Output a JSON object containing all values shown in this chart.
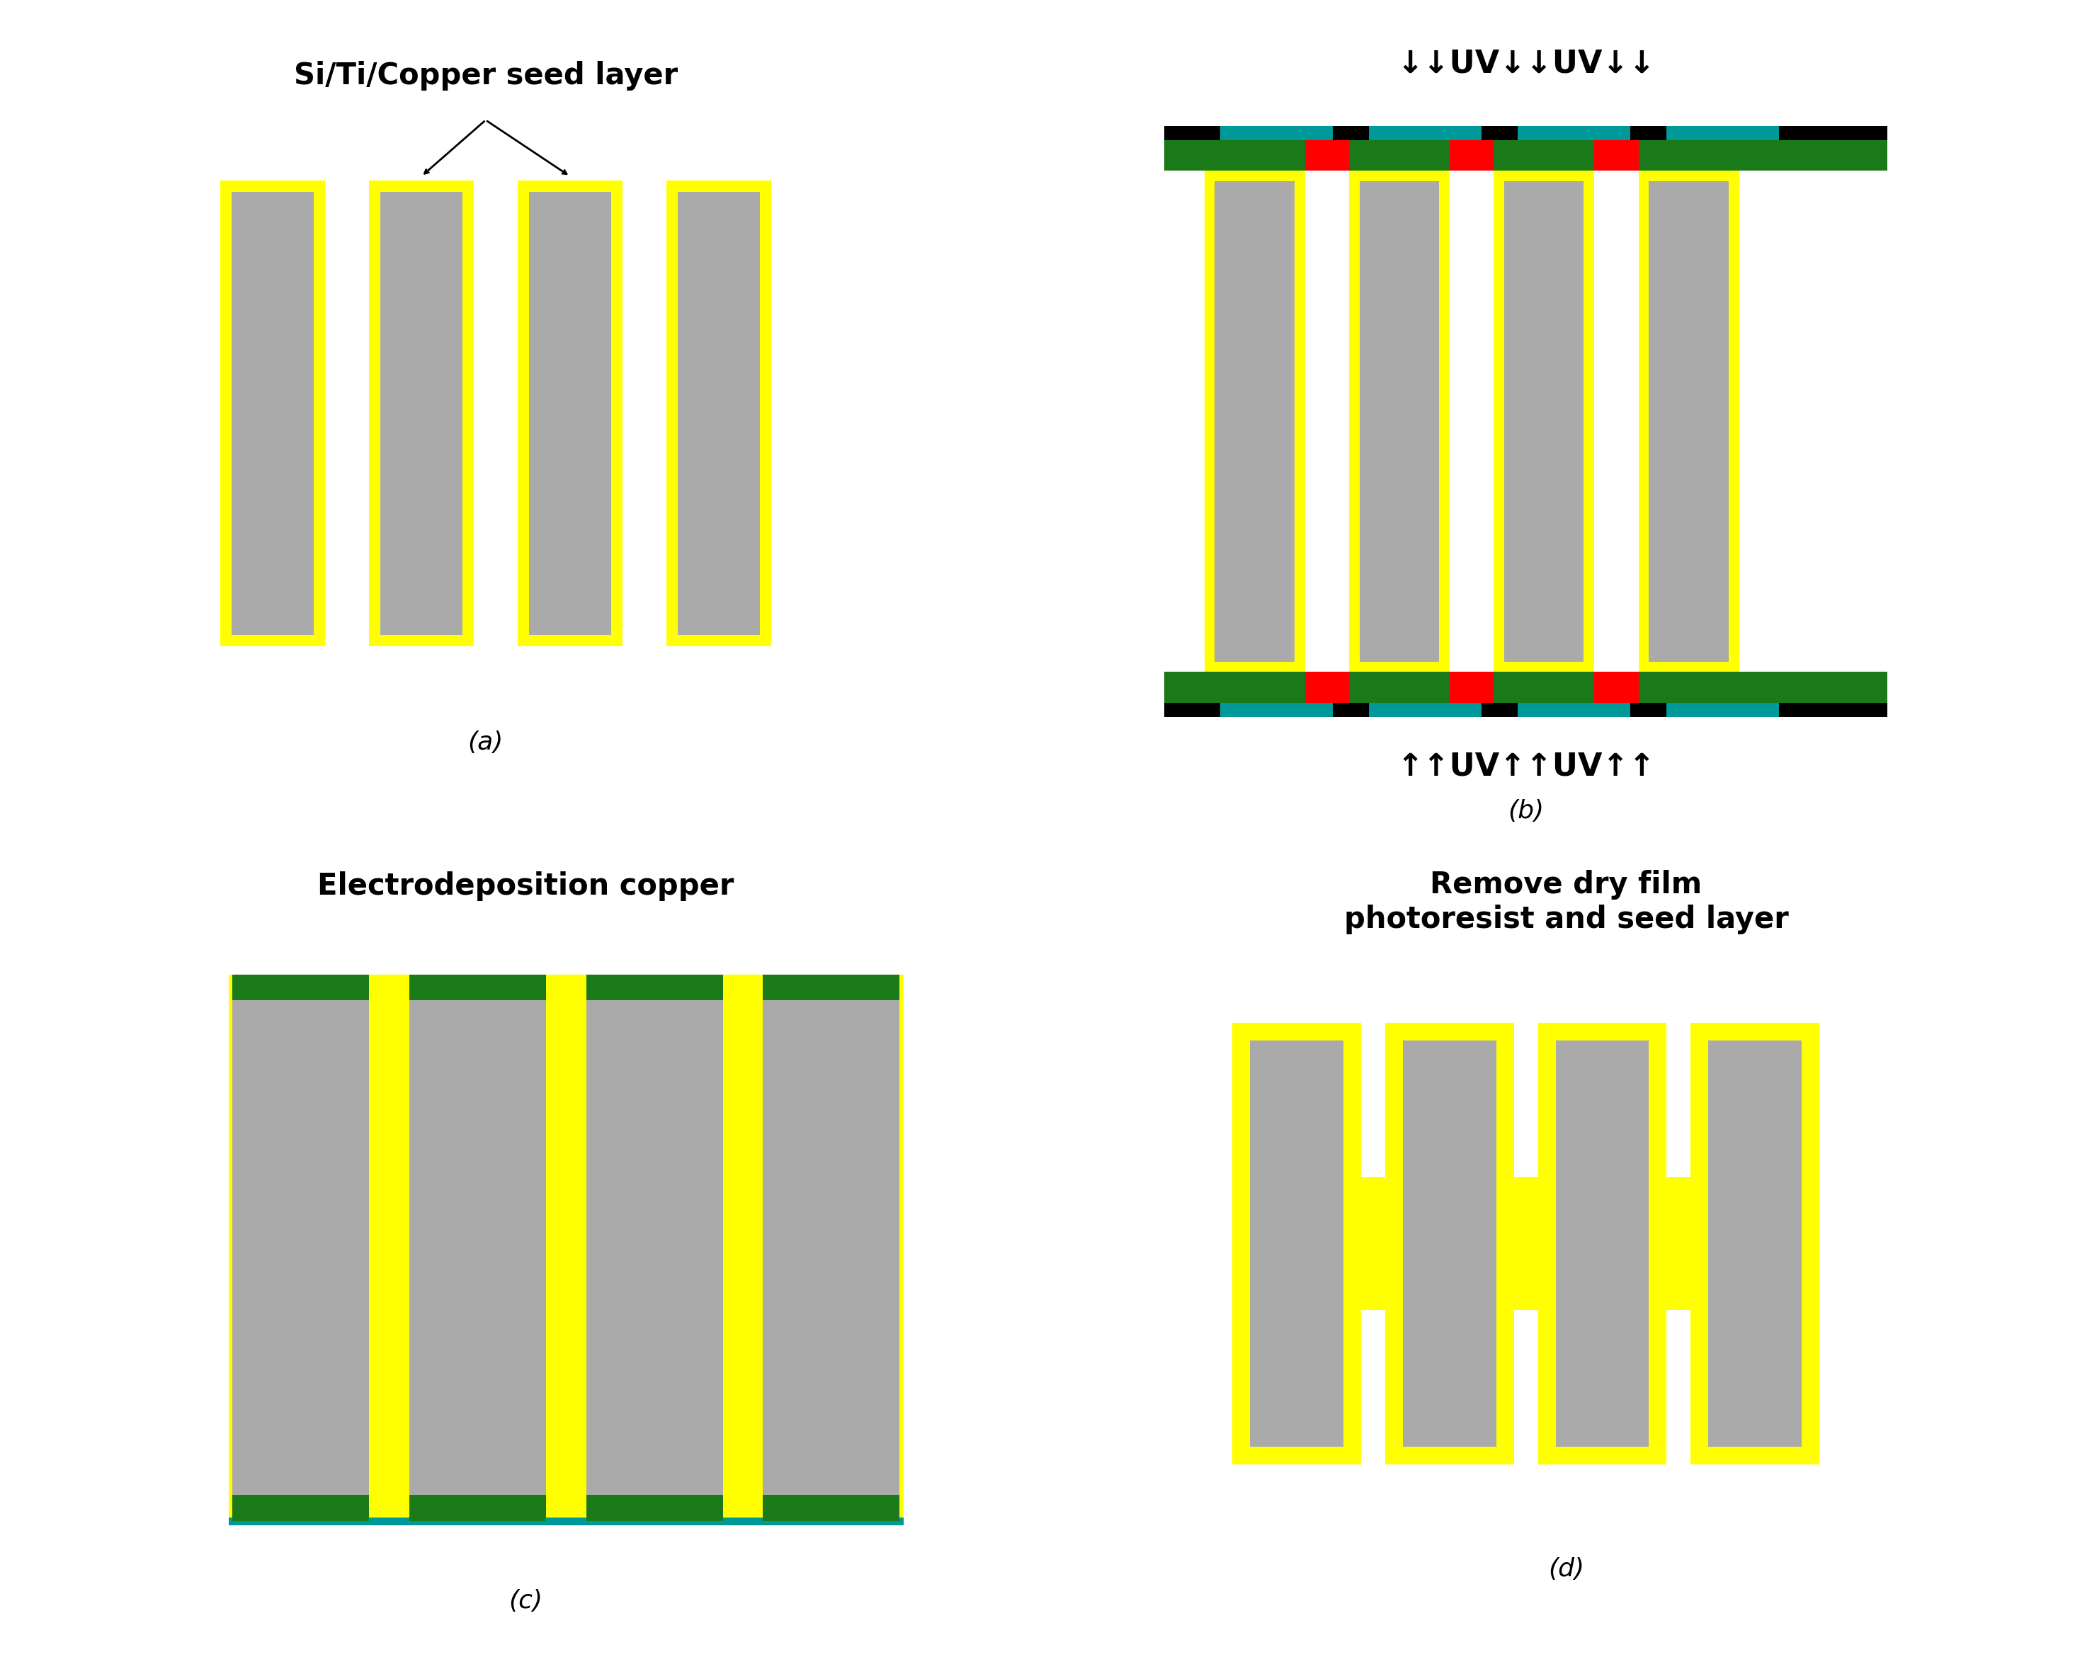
{
  "fig_width": 29.54,
  "fig_height": 23.58,
  "bg_color": "#ffffff",
  "gray": "#aaaaaa",
  "yellow": "#ffff00",
  "green": "#1a7a1a",
  "red": "#ff0000",
  "black": "#000000",
  "cyan": "#009999",
  "title_a": "Si/Ti/Copper seed layer",
  "title_c": "Electrodeposition copper",
  "title_d": "Remove dry film\nphotoresist and seed layer",
  "label_a": "(a)",
  "label_b": "(b)",
  "label_c": "(c)",
  "label_d": "(d)",
  "uv_top": "↓↓UV↓↓UV↓↓",
  "uv_bottom": "↑↑UV↑↑UV↑↑"
}
